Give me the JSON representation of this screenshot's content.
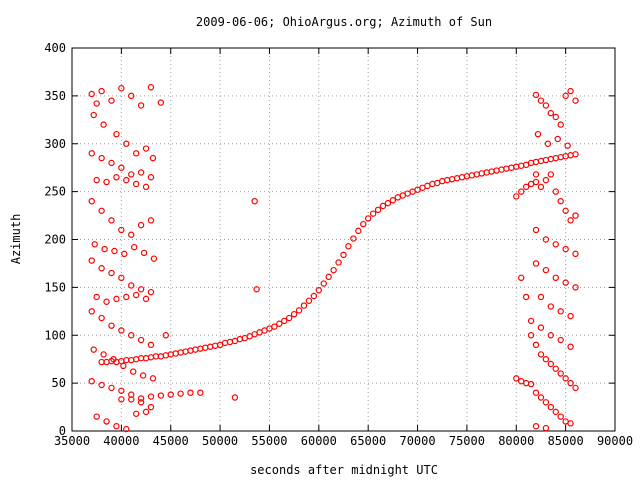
{
  "chart_data": {
    "type": "scatter",
    "title": "2009-06-06; OhioArgus.org; Azimuth of Sun",
    "xlabel": "seconds after midnight UTC",
    "ylabel": "Azimuth",
    "xlim": [
      35000,
      90000
    ],
    "ylim": [
      0,
      400
    ],
    "x_ticks": [
      35000,
      40000,
      45000,
      50000,
      55000,
      60000,
      65000,
      70000,
      75000,
      80000,
      85000,
      90000
    ],
    "y_ticks": [
      0,
      50,
      100,
      150,
      200,
      250,
      300,
      350,
      400
    ],
    "x_tick_labels": [
      "35000",
      "40000",
      "45000",
      "50000",
      "55000",
      "60000",
      "65000",
      "70000",
      "75000",
      "80000",
      "85000",
      "90000"
    ],
    "y_tick_labels": [
      "0",
      "50",
      "100",
      "150",
      "200",
      "250",
      "300",
      "350",
      "400"
    ],
    "grid": true,
    "legend": "none",
    "marker": "open-circle",
    "color": "#ff0000",
    "series": [
      {
        "points": [
          [
            38000,
            72
          ],
          [
            38500,
            72
          ],
          [
            39000,
            73
          ],
          [
            39500,
            72
          ],
          [
            40000,
            73
          ],
          [
            40500,
            74
          ],
          [
            41000,
            74
          ],
          [
            41500,
            75
          ],
          [
            42000,
            76
          ],
          [
            42500,
            76
          ],
          [
            43000,
            77
          ],
          [
            43500,
            78
          ],
          [
            44000,
            78
          ],
          [
            44500,
            79
          ],
          [
            45000,
            80
          ],
          [
            45500,
            81
          ],
          [
            46000,
            82
          ],
          [
            46500,
            83
          ],
          [
            47000,
            84
          ],
          [
            47500,
            85
          ],
          [
            48000,
            86
          ],
          [
            48500,
            87
          ],
          [
            49000,
            88
          ],
          [
            49500,
            89
          ],
          [
            50000,
            90
          ],
          [
            50500,
            92
          ],
          [
            51000,
            93
          ],
          [
            51500,
            94
          ],
          [
            52000,
            96
          ],
          [
            52500,
            97
          ],
          [
            53000,
            99
          ],
          [
            53500,
            101
          ],
          [
            54000,
            103
          ],
          [
            54500,
            105
          ],
          [
            55000,
            107
          ],
          [
            55500,
            109
          ],
          [
            56000,
            112
          ],
          [
            56500,
            115
          ],
          [
            57000,
            118
          ],
          [
            57500,
            122
          ],
          [
            58000,
            126
          ],
          [
            58500,
            131
          ],
          [
            59000,
            136
          ],
          [
            59500,
            141
          ],
          [
            60000,
            147
          ],
          [
            60500,
            154
          ],
          [
            61000,
            161
          ],
          [
            61500,
            168
          ],
          [
            62000,
            176
          ],
          [
            62500,
            184
          ],
          [
            63000,
            193
          ],
          [
            63500,
            201
          ],
          [
            64000,
            209
          ],
          [
            64500,
            216
          ],
          [
            65000,
            222
          ],
          [
            65500,
            227
          ],
          [
            66000,
            231
          ],
          [
            66500,
            235
          ],
          [
            67000,
            238
          ],
          [
            67500,
            241
          ],
          [
            68000,
            244
          ],
          [
            68500,
            246
          ],
          [
            69000,
            248
          ],
          [
            69500,
            250
          ],
          [
            70000,
            252
          ],
          [
            70500,
            254
          ],
          [
            71000,
            256
          ],
          [
            71500,
            258
          ],
          [
            72000,
            259
          ],
          [
            72500,
            261
          ],
          [
            73000,
            262
          ],
          [
            73500,
            263
          ],
          [
            74000,
            264
          ],
          [
            74500,
            265
          ],
          [
            75000,
            266
          ],
          [
            75500,
            267
          ],
          [
            76000,
            268
          ],
          [
            76500,
            269
          ],
          [
            77000,
            270
          ],
          [
            77500,
            271
          ],
          [
            78000,
            272
          ],
          [
            78500,
            273
          ],
          [
            79000,
            274
          ],
          [
            79500,
            275
          ],
          [
            80000,
            276
          ],
          [
            80500,
            277
          ],
          [
            81000,
            278
          ],
          [
            81500,
            280
          ],
          [
            82000,
            281
          ],
          [
            82500,
            282
          ],
          [
            83000,
            283
          ],
          [
            83500,
            284
          ],
          [
            84000,
            285
          ],
          [
            84500,
            286
          ],
          [
            85000,
            287
          ],
          [
            85500,
            288
          ],
          [
            86000,
            289
          ]
        ]
      },
      {
        "points": [
          [
            53500,
            240
          ],
          [
            53700,
            148
          ],
          [
            51500,
            35
          ],
          [
            47000,
            40
          ],
          [
            48000,
            40
          ],
          [
            45000,
            38
          ],
          [
            46000,
            39
          ],
          [
            44000,
            37
          ],
          [
            43000,
            36
          ],
          [
            42000,
            34
          ],
          [
            41000,
            33
          ],
          [
            40000,
            33
          ],
          [
            37000,
            352
          ],
          [
            37500,
            342
          ],
          [
            38000,
            355
          ],
          [
            39000,
            345
          ],
          [
            40000,
            358
          ],
          [
            41000,
            350
          ],
          [
            42000,
            340
          ],
          [
            43000,
            359
          ],
          [
            44000,
            343
          ],
          [
            37200,
            330
          ],
          [
            38200,
            320
          ],
          [
            39500,
            310
          ],
          [
            40500,
            300
          ],
          [
            41500,
            290
          ],
          [
            42500,
            295
          ],
          [
            43200,
            285
          ],
          [
            37000,
            290
          ],
          [
            38000,
            285
          ],
          [
            39000,
            280
          ],
          [
            40000,
            275
          ],
          [
            41000,
            268
          ],
          [
            42000,
            270
          ],
          [
            43000,
            265
          ],
          [
            37500,
            262
          ],
          [
            38500,
            260
          ],
          [
            39500,
            265
          ],
          [
            40500,
            262
          ],
          [
            41500,
            258
          ],
          [
            42500,
            255
          ],
          [
            37000,
            240
          ],
          [
            38000,
            230
          ],
          [
            39000,
            220
          ],
          [
            40000,
            210
          ],
          [
            41000,
            205
          ],
          [
            42000,
            215
          ],
          [
            43000,
            220
          ],
          [
            37300,
            195
          ],
          [
            38300,
            190
          ],
          [
            39300,
            188
          ],
          [
            40300,
            185
          ],
          [
            41300,
            192
          ],
          [
            42300,
            186
          ],
          [
            43300,
            180
          ],
          [
            37000,
            178
          ],
          [
            38000,
            170
          ],
          [
            39000,
            165
          ],
          [
            40000,
            160
          ],
          [
            41000,
            152
          ],
          [
            42000,
            148
          ],
          [
            43000,
            145
          ],
          [
            37500,
            140
          ],
          [
            38500,
            135
          ],
          [
            39500,
            138
          ],
          [
            40500,
            140
          ],
          [
            41500,
            142
          ],
          [
            42500,
            138
          ],
          [
            37000,
            125
          ],
          [
            38000,
            118
          ],
          [
            39000,
            110
          ],
          [
            40000,
            105
          ],
          [
            41000,
            100
          ],
          [
            42000,
            95
          ],
          [
            43000,
            90
          ],
          [
            44500,
            100
          ],
          [
            37200,
            85
          ],
          [
            38200,
            80
          ],
          [
            39200,
            75
          ],
          [
            40200,
            68
          ],
          [
            41200,
            62
          ],
          [
            42200,
            58
          ],
          [
            43200,
            55
          ],
          [
            37000,
            52
          ],
          [
            38000,
            48
          ],
          [
            39000,
            45
          ],
          [
            40000,
            42
          ],
          [
            41000,
            38
          ],
          [
            42000,
            30
          ],
          [
            43000,
            25
          ],
          [
            37500,
            15
          ],
          [
            38500,
            10
          ],
          [
            39500,
            5
          ],
          [
            40500,
            2
          ],
          [
            41500,
            18
          ],
          [
            42500,
            20
          ],
          [
            80000,
            55
          ],
          [
            80500,
            52
          ],
          [
            81000,
            50
          ],
          [
            81500,
            49
          ],
          [
            82000,
            351
          ],
          [
            82500,
            345
          ],
          [
            83000,
            340
          ],
          [
            83500,
            332
          ],
          [
            84000,
            328
          ],
          [
            84500,
            320
          ],
          [
            85000,
            350
          ],
          [
            85500,
            355
          ],
          [
            86000,
            345
          ],
          [
            82200,
            310
          ],
          [
            83200,
            300
          ],
          [
            84200,
            305
          ],
          [
            85200,
            298
          ],
          [
            82000,
            260
          ],
          [
            82500,
            255
          ],
          [
            83000,
            262
          ],
          [
            83500,
            268
          ],
          [
            84000,
            250
          ],
          [
            80000,
            245
          ],
          [
            80500,
            250
          ],
          [
            81000,
            255
          ],
          [
            81500,
            258
          ],
          [
            82000,
            268
          ],
          [
            84500,
            240
          ],
          [
            85000,
            230
          ],
          [
            85500,
            220
          ],
          [
            86000,
            225
          ],
          [
            82000,
            210
          ],
          [
            83000,
            200
          ],
          [
            84000,
            195
          ],
          [
            85000,
            190
          ],
          [
            86000,
            185
          ],
          [
            82000,
            175
          ],
          [
            83000,
            168
          ],
          [
            84000,
            160
          ],
          [
            85000,
            155
          ],
          [
            86000,
            150
          ],
          [
            82500,
            140
          ],
          [
            83500,
            130
          ],
          [
            84500,
            125
          ],
          [
            85500,
            120
          ],
          [
            81500,
            115
          ],
          [
            82500,
            108
          ],
          [
            83500,
            100
          ],
          [
            84500,
            95
          ],
          [
            85500,
            88
          ],
          [
            80500,
            160
          ],
          [
            81000,
            140
          ],
          [
            81500,
            100
          ],
          [
            82000,
            90
          ],
          [
            82500,
            80
          ],
          [
            83000,
            75
          ],
          [
            83500,
            70
          ],
          [
            84000,
            65
          ],
          [
            84500,
            60
          ],
          [
            85000,
            55
          ],
          [
            85500,
            50
          ],
          [
            86000,
            45
          ],
          [
            82000,
            40
          ],
          [
            82500,
            35
          ],
          [
            83000,
            30
          ],
          [
            83500,
            25
          ],
          [
            84000,
            20
          ],
          [
            84500,
            15
          ],
          [
            85000,
            10
          ],
          [
            85500,
            8
          ],
          [
            82000,
            5
          ],
          [
            83000,
            3
          ]
        ]
      }
    ]
  }
}
